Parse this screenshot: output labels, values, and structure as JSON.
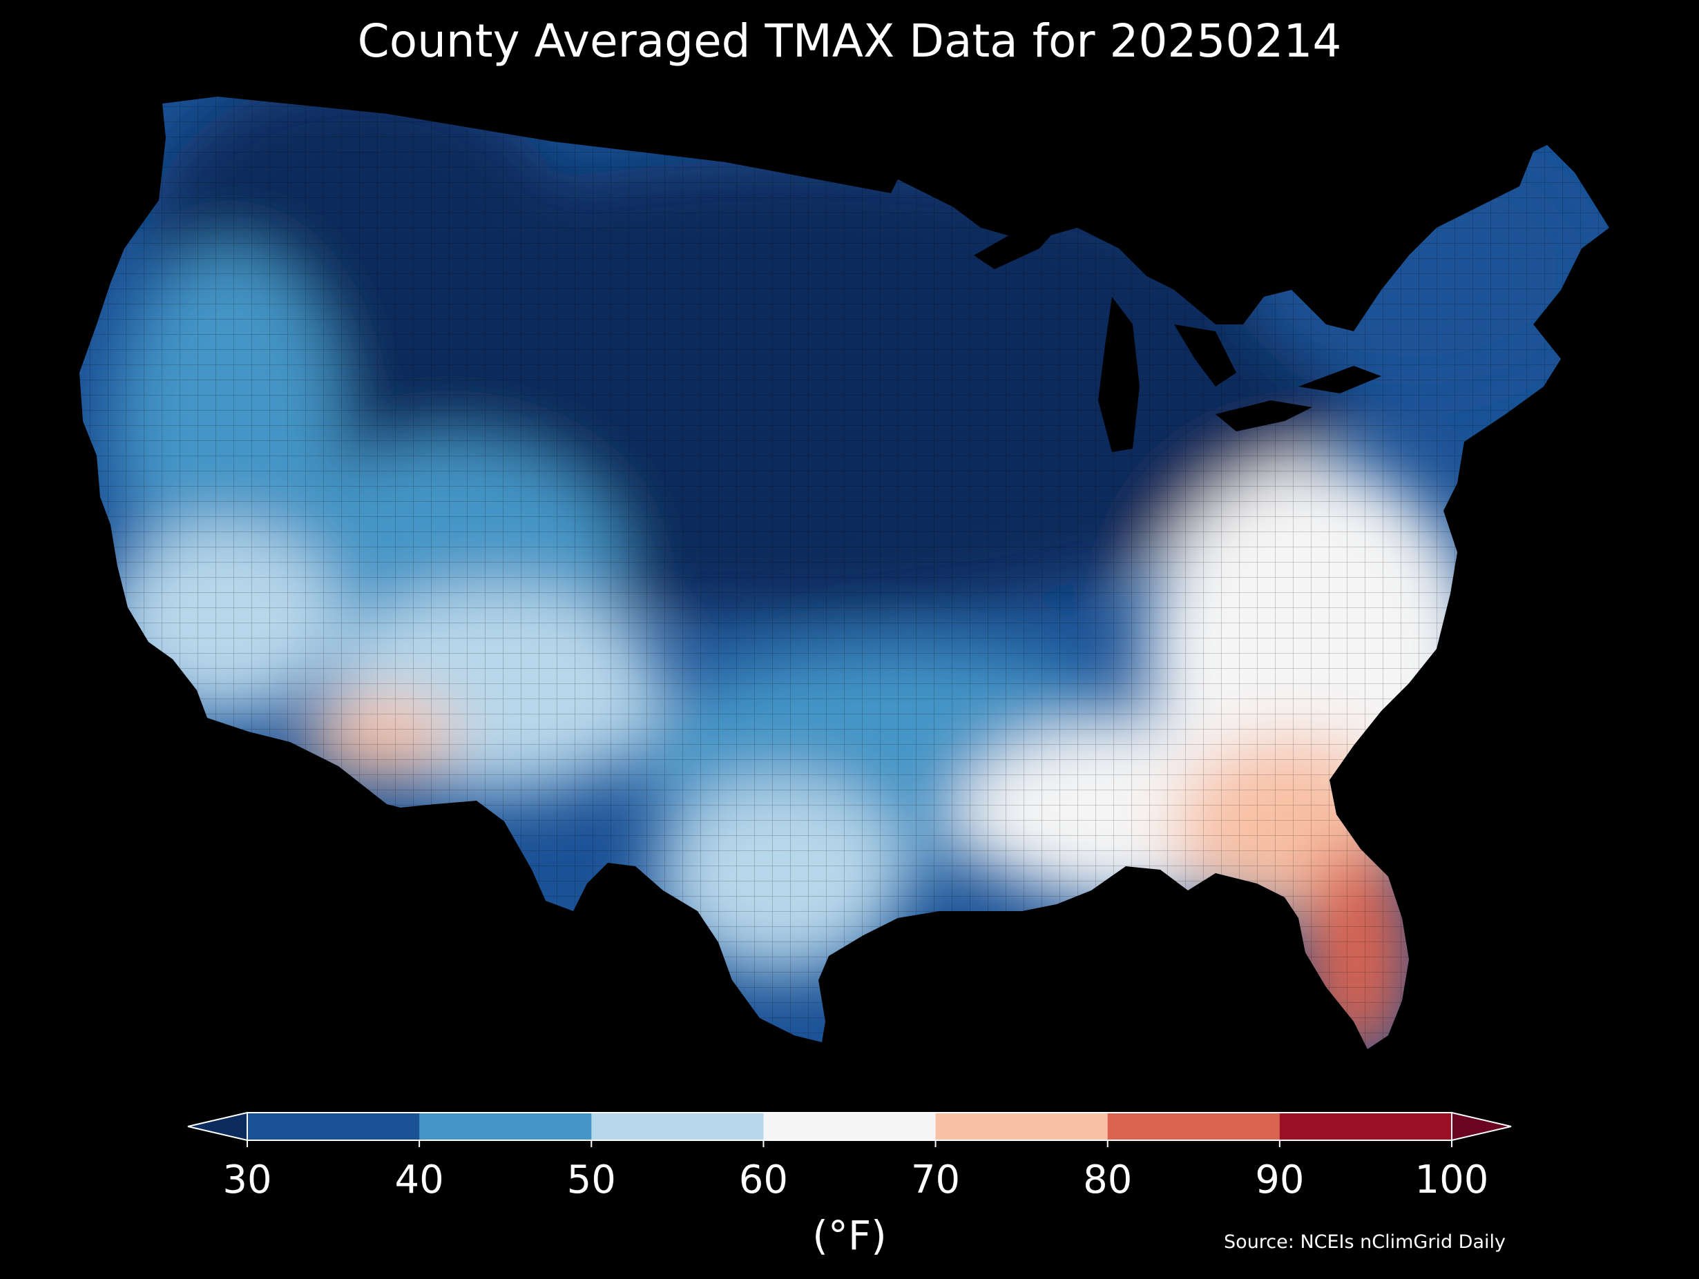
{
  "title": "County Averaged TMAX Data for 20250214",
  "colorbar": {
    "units_label": "(°F)",
    "ticks": [
      "30",
      "40",
      "50",
      "60",
      "70",
      "80",
      "90",
      "100"
    ],
    "bins": [
      {
        "range": "<30",
        "color": "#0b2c5c"
      },
      {
        "range": "30-40",
        "color": "#1b5296"
      },
      {
        "range": "40-50",
        "color": "#4595c6"
      },
      {
        "range": "50-60",
        "color": "#b7d7ea"
      },
      {
        "range": "60-70",
        "color": "#f5f5f5"
      },
      {
        "range": "70-80",
        "color": "#f8c1a6"
      },
      {
        "range": "80-90",
        "color": "#da6450"
      },
      {
        "range": "90-100",
        "color": "#9b1027"
      },
      {
        "range": ">100",
        "color": "#6a0421"
      }
    ],
    "extend": "both"
  },
  "source": "Source: NCEIs nClimGrid Daily",
  "map": {
    "region": "Contiguous United States",
    "variable": "TMAX",
    "units": "°F",
    "date": "20250214",
    "aggregation": "County averaged",
    "background": "#000000"
  }
}
